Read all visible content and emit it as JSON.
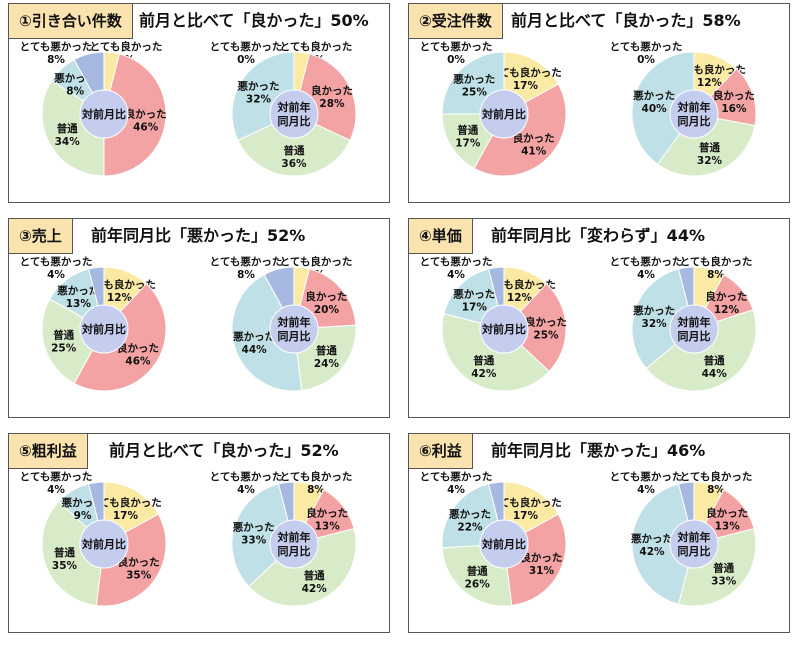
{
  "legend": {
    "very_good": "とても良かった",
    "good": "良かった",
    "normal": "普通",
    "bad": "悪かった",
    "very_bad": "とても悪かった"
  },
  "colors": {
    "very_good": "#fbeaa3",
    "good": "#f3a3a3",
    "normal": "#d8ebc9",
    "bad": "#bfe0e6",
    "very_bad": "#a8b9e1",
    "center": "#c5cdef"
  },
  "center_labels": {
    "mom": "対前月比",
    "yoy_line1": "対前年",
    "yoy_line2": "同月比"
  },
  "chart_data": [
    {
      "type": "pie",
      "tag": "①引き合い件数",
      "headline": "前月と比べて「良かった」50%",
      "pies": [
        {
          "center": "mom",
          "values": {
            "very_good": 4,
            "good": 46,
            "normal": 34,
            "bad": 8,
            "very_bad": 8
          }
        },
        {
          "center": "yoy",
          "values": {
            "very_good": 4,
            "good": 28,
            "normal": 36,
            "bad": 32,
            "very_bad": 0
          }
        }
      ]
    },
    {
      "type": "pie",
      "tag": "②受注件数",
      "headline": "前月と比べて「良かった」58%",
      "pies": [
        {
          "center": "mom",
          "values": {
            "very_good": 17,
            "good": 41,
            "normal": 17,
            "bad": 25,
            "very_bad": 0
          }
        },
        {
          "center": "yoy",
          "values": {
            "very_good": 12,
            "good": 16,
            "normal": 32,
            "bad": 40,
            "very_bad": 0
          }
        }
      ]
    },
    {
      "type": "pie",
      "tag": "③売上",
      "headline": "前年同月比「悪かった」52%",
      "pies": [
        {
          "center": "mom",
          "values": {
            "very_good": 12,
            "good": 46,
            "normal": 25,
            "bad": 13,
            "very_bad": 4
          }
        },
        {
          "center": "yoy",
          "values": {
            "very_good": 4,
            "good": 20,
            "normal": 24,
            "bad": 44,
            "very_bad": 8
          }
        }
      ]
    },
    {
      "type": "pie",
      "tag": "④単価",
      "headline": "前年同月比「変わらず」44%",
      "pies": [
        {
          "center": "mom",
          "values": {
            "very_good": 12,
            "good": 25,
            "normal": 42,
            "bad": 17,
            "very_bad": 4
          }
        },
        {
          "center": "yoy",
          "values": {
            "very_good": 8,
            "good": 12,
            "normal": 44,
            "bad": 32,
            "very_bad": 4
          }
        }
      ]
    },
    {
      "type": "pie",
      "tag": "⑤粗利益",
      "headline": "前月と比べて「良かった」52%",
      "pies": [
        {
          "center": "mom",
          "values": {
            "very_good": 17,
            "good": 35,
            "normal": 35,
            "bad": 9,
            "very_bad": 4
          }
        },
        {
          "center": "yoy",
          "values": {
            "very_good": 8,
            "good": 13,
            "normal": 42,
            "bad": 33,
            "very_bad": 4
          }
        }
      ]
    },
    {
      "type": "pie",
      "tag": "⑥利益",
      "headline": "前年同月比「悪かった」46%",
      "pies": [
        {
          "center": "mom",
          "values": {
            "very_good": 17,
            "good": 31,
            "normal": 26,
            "bad": 22,
            "very_bad": 4
          }
        },
        {
          "center": "yoy",
          "values": {
            "very_good": 8,
            "good": 13,
            "normal": 33,
            "bad": 42,
            "very_bad": 4
          }
        }
      ]
    }
  ]
}
